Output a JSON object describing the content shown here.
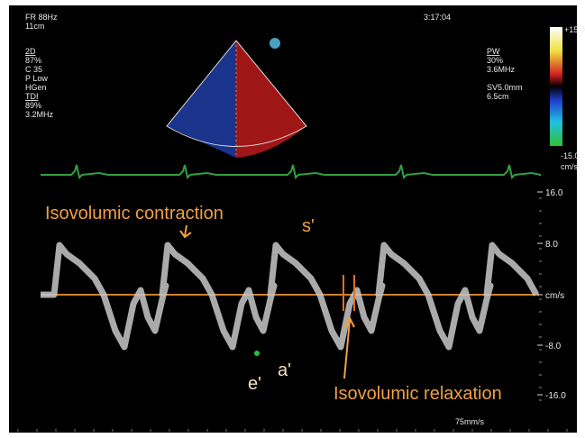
{
  "header": {
    "frame_rate": "FR 88Hz",
    "depth": "11cm",
    "time": "3:17:04"
  },
  "settings_2d": {
    "label": "2D",
    "gain": "87%",
    "compression": "C 35",
    "power": "P Low",
    "frequency": "HGen"
  },
  "settings_tdi": {
    "label": "TDI",
    "gain": "89%",
    "frequency": "3.2MHz"
  },
  "settings_pw": {
    "label": "PW",
    "gain": "30%",
    "frequency": "3.6MHz",
    "sample_volume": "SV5.0mm",
    "depth": "6.5cm"
  },
  "color_scale": {
    "max": "+15.0",
    "min": "-15.0",
    "unit": "cm/s"
  },
  "velocity_scale": {
    "labels": [
      "16.0",
      "8.0",
      "cm/s",
      "-8.0",
      "-16.0"
    ]
  },
  "annotations": {
    "contraction": "Isovolumic contraction",
    "s_wave": "s'",
    "e_wave": "e'",
    "a_wave": "a'",
    "relaxation": "Isovolumic relaxation"
  },
  "sweep_speed": "75mm/s"
}
